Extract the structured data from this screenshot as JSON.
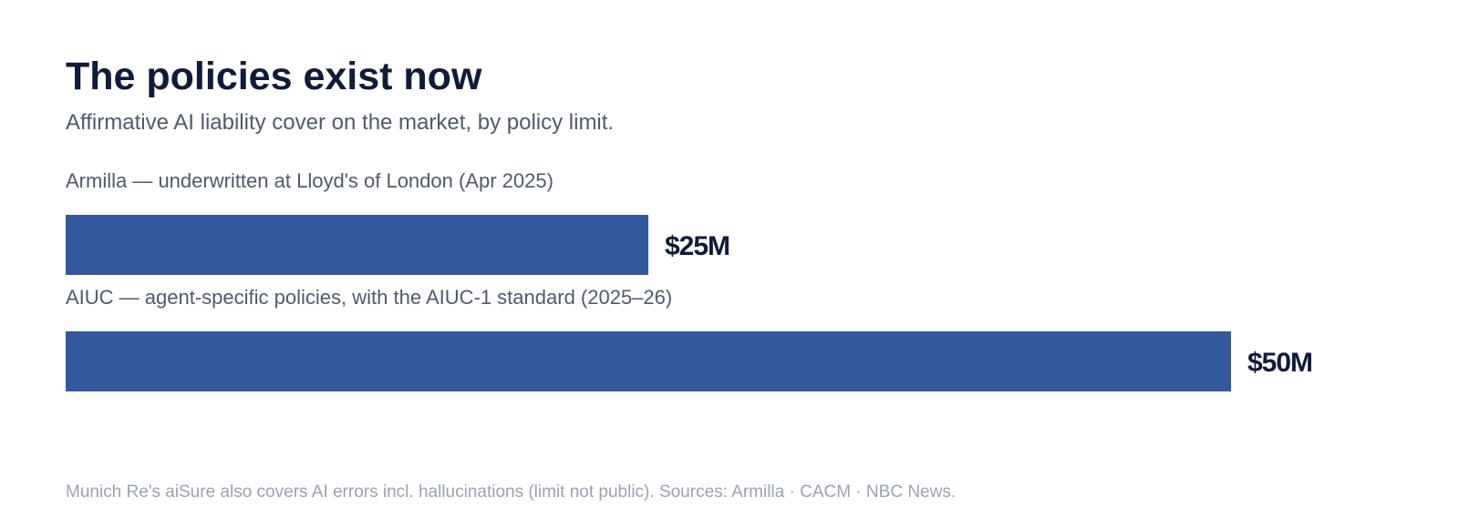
{
  "chart_data": {
    "type": "bar",
    "orientation": "horizontal",
    "title": "The policies exist now",
    "subtitle": "Affirmative AI liability cover on the market, by policy limit.",
    "categories": [
      "Armilla — underwritten at Lloyd's of London (Apr 2025)",
      "AIUC — agent-specific policies, with the AIUC-1 standard (2025–26)"
    ],
    "values": [
      25,
      50
    ],
    "value_labels": [
      "$25M",
      "$50M"
    ],
    "unit": "$M",
    "xlim": [
      0,
      50
    ],
    "grid": false,
    "legend": "none",
    "colors": {
      "bar": "#33589d",
      "title": "#0f1b3a",
      "subtitle": "#4f5a6e",
      "footnote": "#9aa3b2"
    }
  },
  "footnote": "Munich Re's aiSure also covers AI errors incl. hallucinations (limit not public). Sources: Armilla · CACM · NBC News."
}
